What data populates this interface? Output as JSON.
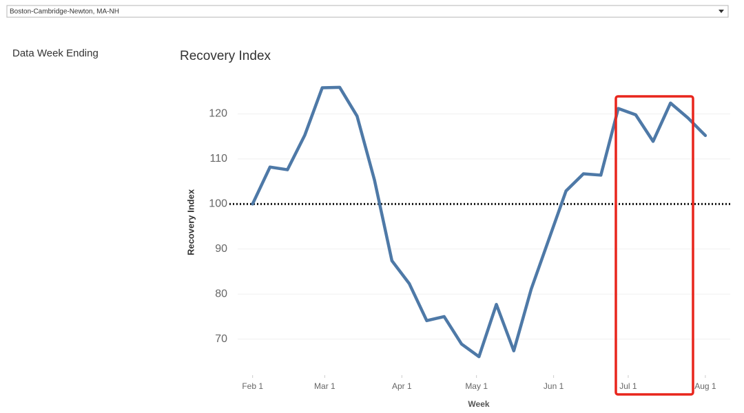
{
  "filter": {
    "selected": "Boston-Cambridge-Newton, MA-NH"
  },
  "side_panel": {
    "label": "Data Week Ending"
  },
  "chart_data": {
    "type": "line",
    "title": "Recovery Index",
    "xlabel": "Week",
    "ylabel": "Recovery Index",
    "x": [
      0,
      7,
      14,
      21,
      28,
      35,
      42,
      49,
      56,
      63,
      70,
      77,
      84,
      91,
      98,
      105,
      112,
      119,
      126,
      133,
      140,
      147,
      154,
      161,
      168,
      175,
      182
    ],
    "series": [
      {
        "name": "Recovery Index",
        "color": "#4e79a7",
        "values": [
          100,
          108.2,
          107.6,
          115.3,
          125.8,
          125.9,
          119.5,
          105.3,
          87.4,
          82.3,
          74.1,
          75.0,
          68.9,
          66.1,
          77.7,
          67.4,
          81.1,
          92.0,
          102.9,
          106.7,
          106.4,
          121.2,
          119.8,
          113.9,
          122.4,
          119.1,
          115.2
        ]
      }
    ],
    "xlim": [
      -6,
      192
    ],
    "xticks": [
      {
        "value": 0,
        "label": "Feb 1"
      },
      {
        "value": 29,
        "label": "Mar 1"
      },
      {
        "value": 60,
        "label": "Apr 1"
      },
      {
        "value": 90,
        "label": "May 1"
      },
      {
        "value": 121,
        "label": "Jun 1"
      },
      {
        "value": 151,
        "label": "Jul 1"
      },
      {
        "value": 182,
        "label": "Aug 1"
      }
    ],
    "ylim": [
      62,
      130
    ],
    "yticks": [
      70,
      80,
      90,
      100,
      110,
      120
    ],
    "grid": true,
    "reference_line": 100
  }
}
